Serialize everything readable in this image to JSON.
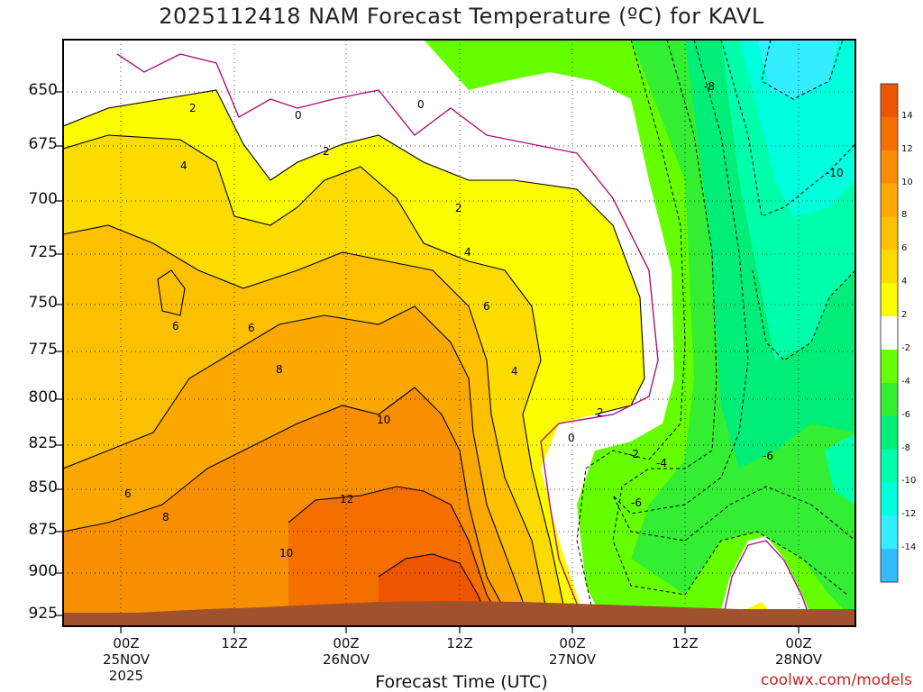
{
  "chart_data": {
    "type": "heatmap",
    "title": "2025112418 NAM Forecast Temperature (ºC) for KAVL",
    "xlabel": "Forecast Time (UTC)",
    "y_ticks": [
      "650",
      "675",
      "700",
      "725",
      "750",
      "775",
      "800",
      "825",
      "850",
      "875",
      "900",
      "925"
    ],
    "x_ticks": [
      {
        "hour": "00Z",
        "date": "25NOV",
        "year": "2025"
      },
      {
        "hour": "12Z",
        "date": "",
        "year": ""
      },
      {
        "hour": "00Z",
        "date": "26NOV",
        "year": ""
      },
      {
        "hour": "12Z",
        "date": "",
        "year": ""
      },
      {
        "hour": "00Z",
        "date": "27NOV",
        "year": ""
      },
      {
        "hour": "12Z",
        "date": "",
        "year": ""
      },
      {
        "hour": "00Z",
        "date": "28NOV",
        "year": ""
      }
    ],
    "colorbar": {
      "labels": [
        "14",
        "12",
        "10",
        "8",
        "6",
        "4",
        "2",
        "-2",
        "-4",
        "-6",
        "-8",
        "-10",
        "-12",
        "-14"
      ],
      "colors": [
        "#ee5500",
        "#f56e00",
        "#f88f00",
        "#fba800",
        "#fcc000",
        "#fcdc00",
        "#fcfc00",
        "#ffffff",
        "#66ff00",
        "#33ee33",
        "#00ee77",
        "#00ffaa",
        "#00ffdd",
        "#33eeff",
        "#33bbff"
      ]
    },
    "contour_labels": [
      "2",
      "0",
      "0",
      "2",
      "4",
      "2",
      "4",
      "6",
      "6",
      "6",
      "8",
      "10",
      "12",
      "10",
      "6",
      "8",
      "4",
      "2",
      "0",
      "-2",
      "-4",
      "-6",
      "-6",
      "-8",
      "-10"
    ]
  },
  "credit": "coolwx.com/models"
}
